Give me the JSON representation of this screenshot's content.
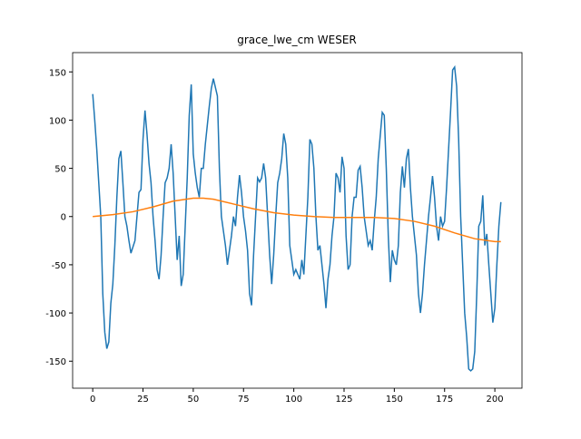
{
  "chart_data": {
    "type": "line",
    "title": "grace_lwe_cm WESER",
    "xlim": [
      -10,
      213.5
    ],
    "xticks": [
      0,
      25,
      50,
      75,
      100,
      125,
      150,
      175,
      200
    ],
    "ylim": [
      -178,
      170
    ],
    "yticks": [
      -150,
      -100,
      -50,
      0,
      50,
      100,
      150
    ],
    "series": [
      {
        "color": "#1f77b4",
        "x": [
          0,
          1,
          2,
          3,
          4,
          5,
          6,
          7,
          8,
          9,
          10,
          11,
          12,
          13,
          14,
          15,
          16,
          17,
          18,
          19,
          21,
          22,
          23,
          24,
          25,
          26,
          27,
          28,
          29,
          30,
          31,
          32,
          33,
          34,
          35,
          36,
          37,
          38,
          39,
          40,
          41,
          42,
          43,
          44,
          45,
          46,
          47,
          48,
          49,
          50,
          51,
          52,
          53,
          54,
          55,
          56,
          57,
          58,
          59,
          60,
          62,
          63,
          64,
          65,
          66,
          67,
          68,
          69,
          70,
          71,
          72,
          73,
          74,
          75,
          76,
          77,
          78,
          79,
          80,
          81,
          82,
          83,
          84,
          85,
          86,
          87,
          88,
          89,
          90,
          91,
          92,
          93,
          94,
          95,
          96,
          97,
          98,
          99,
          100,
          101,
          103,
          104,
          105,
          106,
          107,
          108,
          109,
          110,
          111,
          112,
          113,
          114,
          115,
          116,
          117,
          118,
          119,
          120,
          121,
          122,
          123,
          124,
          125,
          126,
          127,
          128,
          129,
          130,
          131,
          132,
          133,
          134,
          135,
          136,
          137,
          138,
          139,
          140,
          141,
          142,
          144,
          145,
          146,
          147,
          148,
          149,
          150,
          151,
          152,
          153,
          154,
          155,
          156,
          157,
          158,
          159,
          160,
          161,
          162,
          163,
          164,
          165,
          166,
          167,
          168,
          169,
          170,
          171,
          172,
          173,
          174,
          175,
          176,
          177,
          178,
          179,
          180,
          181,
          182,
          183,
          185,
          186,
          187,
          188,
          189,
          190,
          191,
          192,
          193,
          194,
          195,
          196,
          197,
          198,
          199,
          200,
          201,
          202,
          203
        ],
        "values": [
          127,
          100,
          70,
          35,
          0,
          -80,
          -120,
          -137,
          -130,
          -90,
          -70,
          -30,
          20,
          60,
          68,
          35,
          0,
          -10,
          -25,
          -38,
          -25,
          0,
          25,
          28,
          80,
          110,
          85,
          55,
          35,
          0,
          -25,
          -55,
          -65,
          -40,
          0,
          35,
          40,
          50,
          75,
          45,
          0,
          -45,
          -20,
          -72,
          -60,
          -10,
          40,
          105,
          137,
          65,
          45,
          30,
          20,
          50,
          50,
          75,
          95,
          115,
          133,
          143,
          125,
          50,
          0,
          -15,
          -30,
          -50,
          -35,
          -20,
          0,
          -10,
          20,
          43,
          25,
          0,
          -15,
          -35,
          -80,
          -92,
          -40,
          0,
          40,
          36,
          40,
          55,
          40,
          0,
          -40,
          -70,
          -40,
          0,
          35,
          45,
          60,
          86,
          75,
          40,
          -30,
          -45,
          -60,
          -55,
          -65,
          -45,
          -60,
          -20,
          20,
          80,
          75,
          50,
          0,
          -35,
          -30,
          -50,
          -70,
          -95,
          -65,
          -50,
          -20,
          0,
          45,
          40,
          25,
          62,
          50,
          -20,
          -55,
          -50,
          0,
          20,
          20,
          48,
          52,
          30,
          0,
          -15,
          -30,
          -25,
          -35,
          -5,
          20,
          60,
          108,
          105,
          50,
          -20,
          -68,
          -35,
          -45,
          -50,
          -30,
          25,
          52,
          30,
          60,
          70,
          30,
          0,
          -20,
          -40,
          -80,
          -100,
          -80,
          -50,
          -25,
          0,
          20,
          42,
          20,
          -10,
          -25,
          0,
          -10,
          -5,
          30,
          70,
          110,
          152,
          155,
          135,
          80,
          0,
          -100,
          -125,
          -158,
          -160,
          -158,
          -140,
          -80,
          -10,
          -5,
          22,
          -30,
          -18,
          -50,
          -80,
          -110,
          -95,
          -50,
          -10,
          15
        ]
      },
      {
        "color": "#ff7f0e",
        "x": [
          0,
          10,
          20,
          30,
          40,
          50,
          55,
          60,
          70,
          80,
          90,
          100,
          110,
          120,
          130,
          140,
          150,
          160,
          170,
          180,
          190,
          200,
          203
        ],
        "values": [
          0,
          2,
          5,
          10,
          16,
          19,
          19,
          18,
          13,
          8,
          4,
          1.5,
          0,
          -1,
          -1,
          -1,
          -2,
          -5,
          -10,
          -17,
          -23,
          -26,
          -26
        ]
      }
    ]
  }
}
